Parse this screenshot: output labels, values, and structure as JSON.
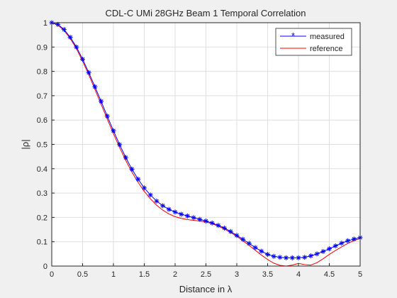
{
  "chart_data": {
    "type": "line",
    "title": "CDL-C UMi 28GHz Beam 1 Temporal Correlation",
    "xlabel": "Distance in λ",
    "ylabel": "|ρ|",
    "xlim": [
      0,
      5
    ],
    "ylim": [
      0,
      1
    ],
    "xticks": [
      0,
      0.5,
      1,
      1.5,
      2,
      2.5,
      3,
      3.5,
      4,
      4.5,
      5
    ],
    "xtick_labels": [
      "0",
      "0.5",
      "1",
      "1.5",
      "2",
      "2.5",
      "3",
      "3.5",
      "4",
      "4.5",
      "5"
    ],
    "yticks": [
      0,
      0.1,
      0.2,
      0.3,
      0.4,
      0.5,
      0.6,
      0.7,
      0.8,
      0.9,
      1
    ],
    "ytick_labels": [
      "0",
      "0.1",
      "0.2",
      "0.3",
      "0.4",
      "0.5",
      "0.6",
      "0.7",
      "0.8",
      "0.9",
      "1"
    ],
    "grid": true,
    "legend_position": "top-right",
    "series": [
      {
        "name": "measured",
        "color": "#0000ff",
        "marker": "asterisk",
        "x": [
          0,
          0.1,
          0.2,
          0.3,
          0.4,
          0.5,
          0.6,
          0.7,
          0.8,
          0.9,
          1.0,
          1.1,
          1.2,
          1.3,
          1.4,
          1.5,
          1.6,
          1.7,
          1.8,
          1.9,
          2.0,
          2.1,
          2.2,
          2.3,
          2.4,
          2.5,
          2.6,
          2.7,
          2.8,
          2.9,
          3.0,
          3.1,
          3.2,
          3.3,
          3.4,
          3.5,
          3.6,
          3.7,
          3.8,
          3.9,
          4.0,
          4.1,
          4.2,
          4.3,
          4.4,
          4.5,
          4.6,
          4.7,
          4.8,
          4.9,
          5.0
        ],
        "y": [
          1.0,
          0.993,
          0.972,
          0.94,
          0.9,
          0.85,
          0.795,
          0.737,
          0.677,
          0.616,
          0.556,
          0.499,
          0.446,
          0.398,
          0.357,
          0.321,
          0.292,
          0.267,
          0.248,
          0.233,
          0.222,
          0.213,
          0.206,
          0.199,
          0.192,
          0.185,
          0.177,
          0.167,
          0.156,
          0.142,
          0.126,
          0.11,
          0.093,
          0.076,
          0.061,
          0.048,
          0.04,
          0.036,
          0.034,
          0.034,
          0.034,
          0.036,
          0.042,
          0.05,
          0.06,
          0.071,
          0.083,
          0.094,
          0.104,
          0.111,
          0.117
        ]
      },
      {
        "name": "reference",
        "color": "#ff0000",
        "marker": "none",
        "x": [
          0,
          0.1,
          0.2,
          0.3,
          0.4,
          0.5,
          0.6,
          0.7,
          0.8,
          0.9,
          1.0,
          1.1,
          1.2,
          1.3,
          1.4,
          1.5,
          1.6,
          1.7,
          1.8,
          1.9,
          2.0,
          2.1,
          2.2,
          2.3,
          2.4,
          2.5,
          2.6,
          2.7,
          2.8,
          2.9,
          3.0,
          3.1,
          3.2,
          3.3,
          3.4,
          3.5,
          3.6,
          3.7,
          3.8,
          3.9,
          4.0,
          4.1,
          4.2,
          4.3,
          4.4,
          4.5,
          4.6,
          4.7,
          4.8,
          4.9,
          5.0
        ],
        "y": [
          1.0,
          0.99,
          0.968,
          0.935,
          0.893,
          0.842,
          0.786,
          0.726,
          0.665,
          0.604,
          0.544,
          0.487,
          0.434,
          0.386,
          0.344,
          0.307,
          0.276,
          0.25,
          0.23,
          0.214,
          0.203,
          0.196,
          0.191,
          0.188,
          0.185,
          0.181,
          0.174,
          0.164,
          0.152,
          0.138,
          0.122,
          0.104,
          0.085,
          0.065,
          0.045,
          0.027,
          0.012,
          0.003,
          0.0,
          0.004,
          0.011,
          0.006,
          0.004,
          0.014,
          0.03,
          0.048,
          0.064,
          0.079,
          0.093,
          0.105,
          0.113
        ]
      }
    ]
  }
}
